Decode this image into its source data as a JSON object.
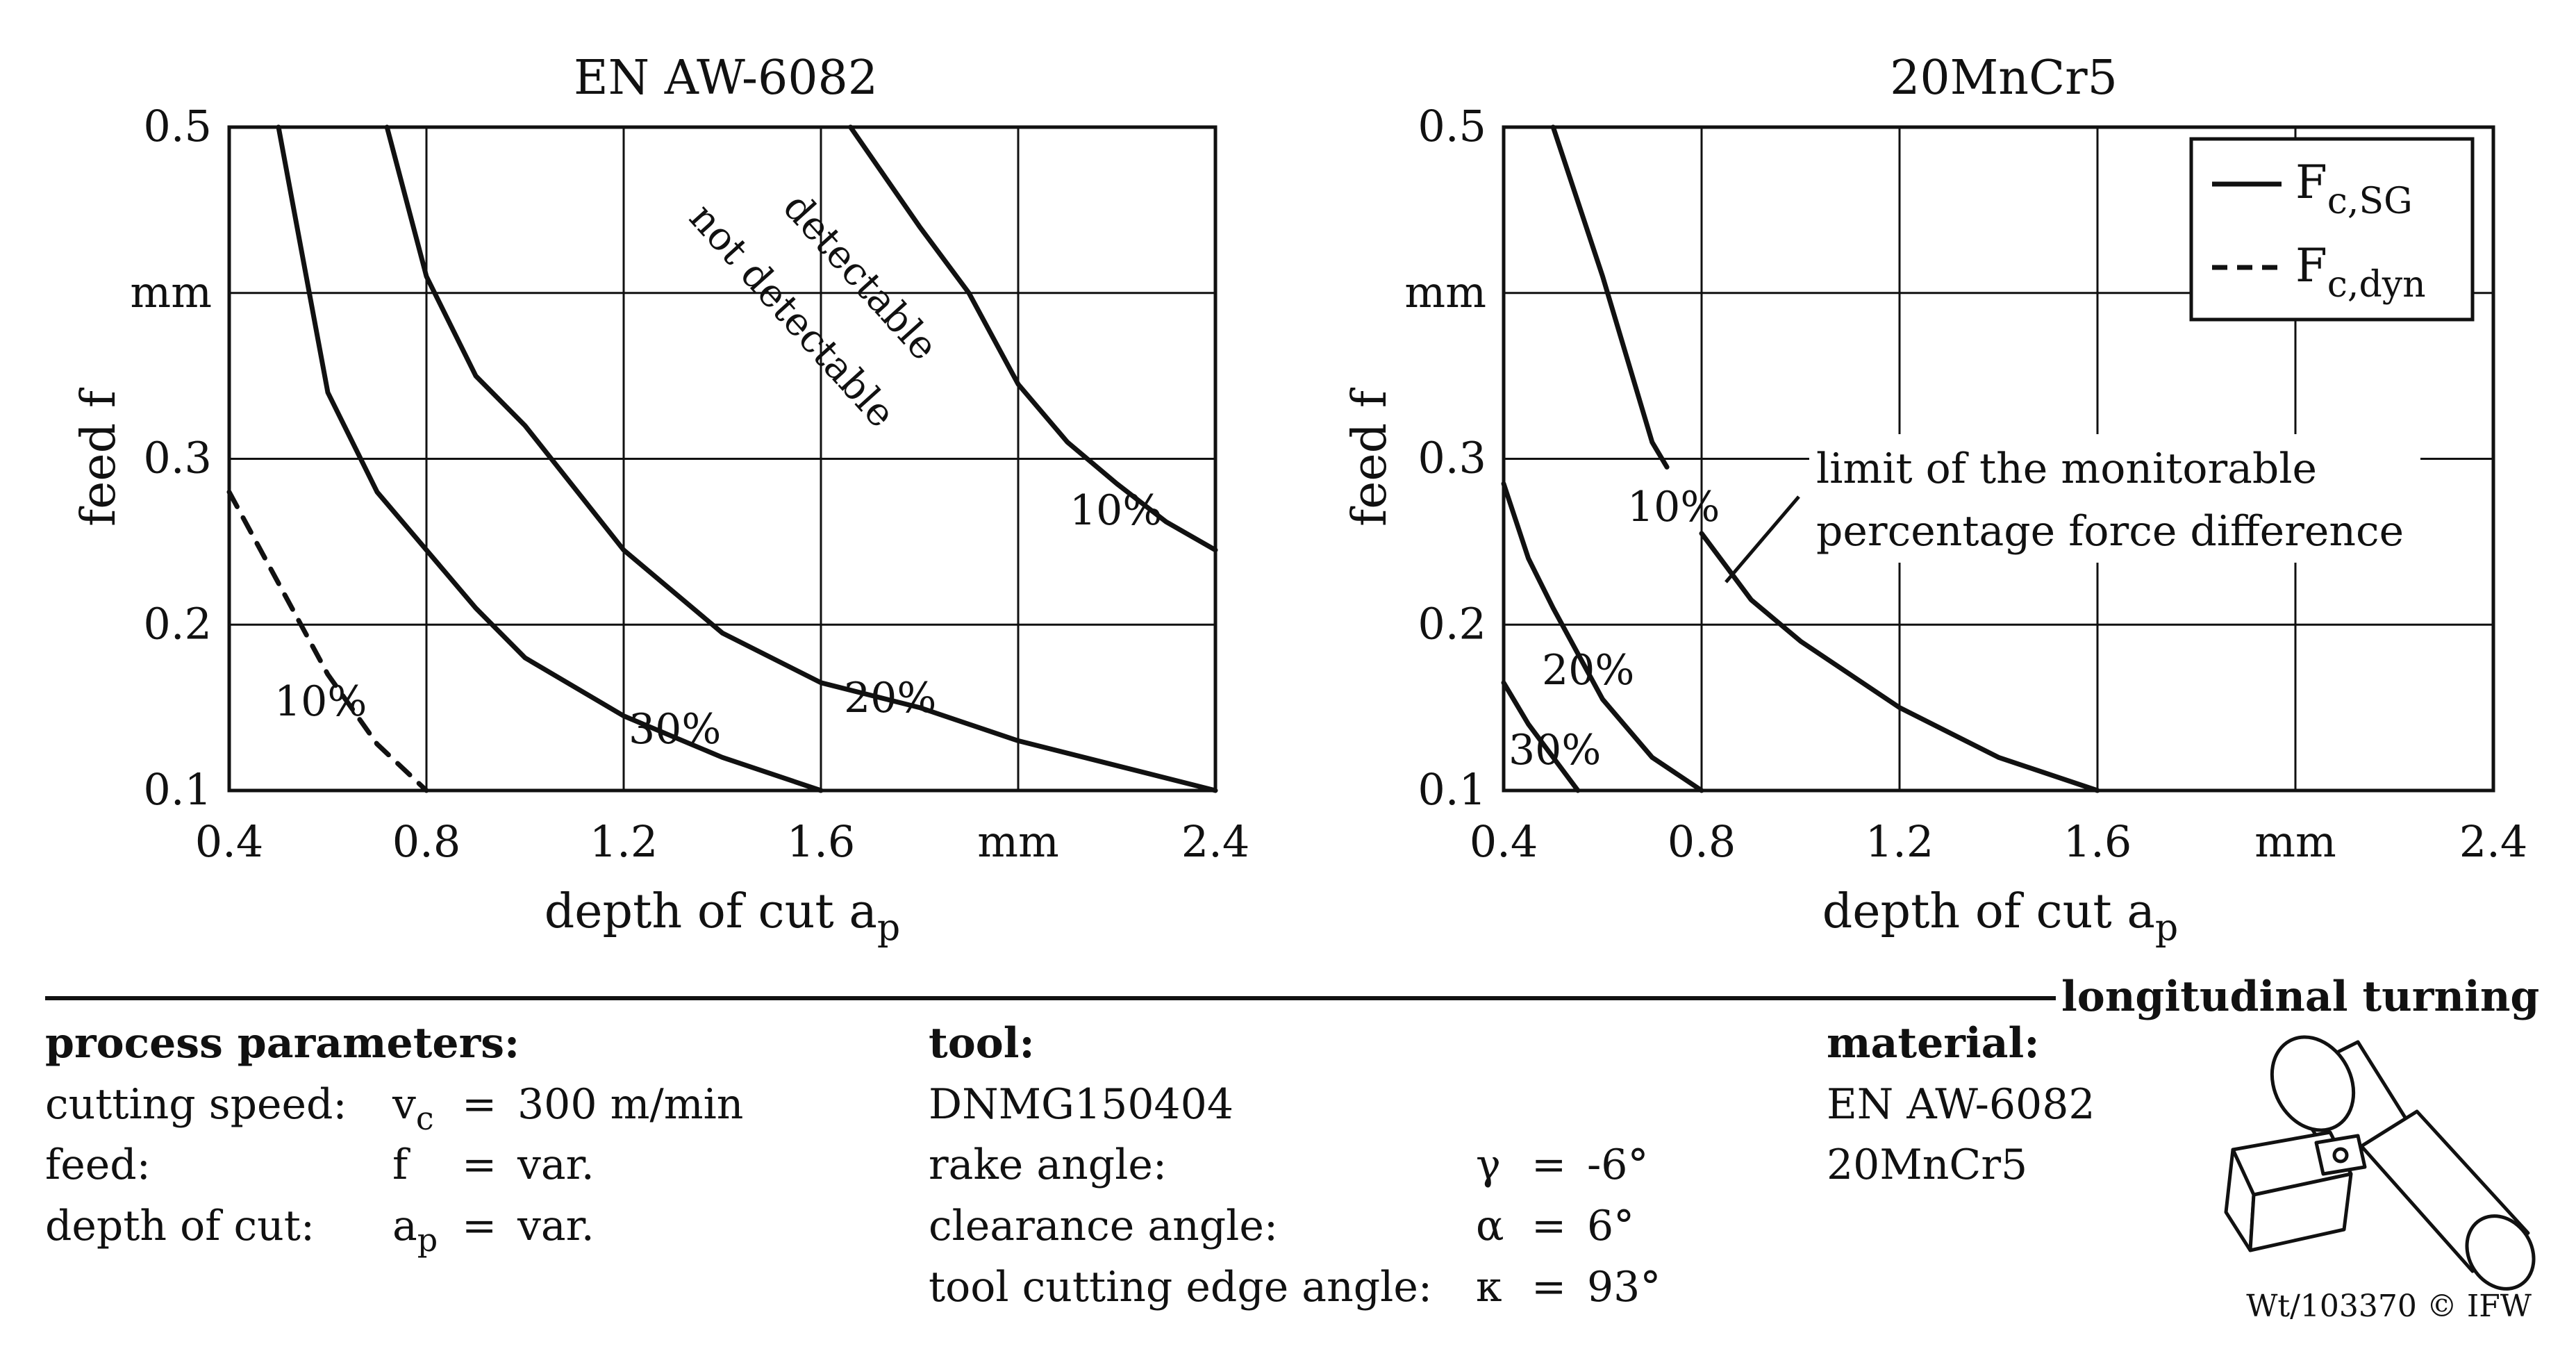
{
  "chart_data": [
    {
      "type": "line",
      "title": "EN AW-6082",
      "xlabel": "depth of cut a",
      "xlabel_sub": "p",
      "ylabel": "feed f",
      "xlim": [
        0.4,
        2.4
      ],
      "ylim": [
        0.1,
        0.5
      ],
      "x_ticks": [
        0.4,
        0.8,
        1.2,
        1.6,
        2.0,
        2.4
      ],
      "x_tick_labels": [
        "0.4",
        "0.8",
        "1.2",
        "1.6",
        "mm",
        "2.4"
      ],
      "y_ticks": [
        0.1,
        0.2,
        0.3,
        0.4,
        0.5
      ],
      "y_tick_labels": [
        "0.1",
        "0.2",
        "0.3",
        "mm",
        "0.5"
      ],
      "grid": true,
      "series": [
        {
          "name": "F_c,SG 10%",
          "style": "solid",
          "label": "10%",
          "points": [
            [
              1.66,
              0.5
            ],
            [
              1.8,
              0.44
            ],
            [
              1.9,
              0.4
            ],
            [
              2.0,
              0.345
            ],
            [
              2.1,
              0.31
            ],
            [
              2.2,
              0.285
            ],
            [
              2.3,
              0.262
            ],
            [
              2.4,
              0.245
            ]
          ]
        },
        {
          "name": "F_c,SG 20%",
          "style": "solid",
          "label": "20%",
          "points": [
            [
              0.72,
              0.5
            ],
            [
              0.8,
              0.41
            ],
            [
              0.9,
              0.35
            ],
            [
              1.0,
              0.32
            ],
            [
              1.2,
              0.245
            ],
            [
              1.4,
              0.195
            ],
            [
              1.6,
              0.165
            ],
            [
              1.8,
              0.15
            ],
            [
              2.0,
              0.13
            ],
            [
              2.2,
              0.115
            ],
            [
              2.4,
              0.1
            ]
          ]
        },
        {
          "name": "F_c,SG 30%",
          "style": "solid",
          "label": "30%",
          "points": [
            [
              0.5,
              0.5
            ],
            [
              0.6,
              0.34
            ],
            [
              0.7,
              0.28
            ],
            [
              0.8,
              0.245
            ],
            [
              0.9,
              0.21
            ],
            [
              1.0,
              0.18
            ],
            [
              1.2,
              0.145
            ],
            [
              1.4,
              0.12
            ],
            [
              1.6,
              0.1
            ]
          ]
        },
        {
          "name": "F_c,dyn 10%",
          "style": "dashed",
          "label": "10%",
          "points": [
            [
              0.4,
              0.28
            ],
            [
              0.5,
              0.225
            ],
            [
              0.6,
              0.17
            ],
            [
              0.7,
              0.128
            ],
            [
              0.8,
              0.1
            ]
          ]
        }
      ],
      "annotations": [
        {
          "text": "detectable"
        },
        {
          "text": "not detectable"
        }
      ]
    },
    {
      "type": "line",
      "title": "20MnCr5",
      "xlabel": "depth of cut a",
      "xlabel_sub": "p",
      "ylabel": "feed f",
      "xlim": [
        0.4,
        2.4
      ],
      "ylim": [
        0.1,
        0.5
      ],
      "x_ticks": [
        0.4,
        0.8,
        1.2,
        1.6,
        2.0,
        2.4
      ],
      "x_tick_labels": [
        "0.4",
        "0.8",
        "1.2",
        "1.6",
        "mm",
        "2.4"
      ],
      "y_ticks": [
        0.1,
        0.2,
        0.3,
        0.4,
        0.5
      ],
      "y_tick_labels": [
        "0.1",
        "0.2",
        "0.3",
        "mm",
        "0.5"
      ],
      "grid": true,
      "series": [
        {
          "name": "F_c,SG 10% upper",
          "style": "solid",
          "label": "10%",
          "points": [
            [
              0.5,
              0.5
            ],
            [
              0.6,
              0.41
            ],
            [
              0.7,
              0.31
            ],
            [
              0.73,
              0.295
            ]
          ]
        },
        {
          "name": "F_c,SG 10% lower",
          "style": "solid",
          "label": "",
          "points": [
            [
              0.8,
              0.255
            ],
            [
              0.9,
              0.215
            ],
            [
              1.0,
              0.19
            ],
            [
              1.2,
              0.15
            ],
            [
              1.4,
              0.12
            ],
            [
              1.6,
              0.1
            ]
          ]
        },
        {
          "name": "F_c,SG 20%",
          "style": "solid",
          "label": "20%",
          "points": [
            [
              0.4,
              0.285
            ],
            [
              0.45,
              0.24
            ],
            [
              0.5,
              0.21
            ],
            [
              0.6,
              0.155
            ],
            [
              0.7,
              0.12
            ],
            [
              0.8,
              0.1
            ]
          ]
        },
        {
          "name": "F_c,SG 30%",
          "style": "solid",
          "label": "30%",
          "points": [
            [
              0.4,
              0.165
            ],
            [
              0.45,
              0.14
            ],
            [
              0.5,
              0.12
            ],
            [
              0.55,
              0.1
            ]
          ]
        }
      ],
      "legend": {
        "placement": "top-right",
        "entries": [
          {
            "style": "solid",
            "main": "F",
            "sub": "c,SG"
          },
          {
            "style": "dashed",
            "main": "F",
            "sub": "c,dyn"
          }
        ]
      },
      "annotations": [
        {
          "text": "limit of the monitorable"
        },
        {
          "text": "percentage force difference"
        }
      ]
    }
  ],
  "bottom": {
    "header_label": "longitudinal turning",
    "process": {
      "heading": "process parameters:",
      "rows": [
        {
          "label": "cutting speed:",
          "sym": "v",
          "sub": "c",
          "eq": "=",
          "val": "300 m/min"
        },
        {
          "label": "feed:",
          "sym": "f",
          "sub": "",
          "eq": "=",
          "val": "var."
        },
        {
          "label": "depth of cut:",
          "sym": "a",
          "sub": "p",
          "eq": "=",
          "val": "var."
        }
      ]
    },
    "tool": {
      "heading": "tool:",
      "name": "DNMG150404",
      "rows": [
        {
          "label": "rake angle:",
          "sym": "γ",
          "eq": "=",
          "val": "-6°"
        },
        {
          "label": "clearance angle:",
          "sym": "α",
          "eq": "=",
          "val": "6°"
        },
        {
          "label": "tool cutting edge angle:",
          "sym": "κ",
          "eq": "=",
          "val": "93°"
        }
      ]
    },
    "material": {
      "heading": "material:",
      "items": [
        "EN AW-6082",
        "20MnCr5"
      ]
    },
    "copyright": "Wt/103370 © IFW"
  }
}
